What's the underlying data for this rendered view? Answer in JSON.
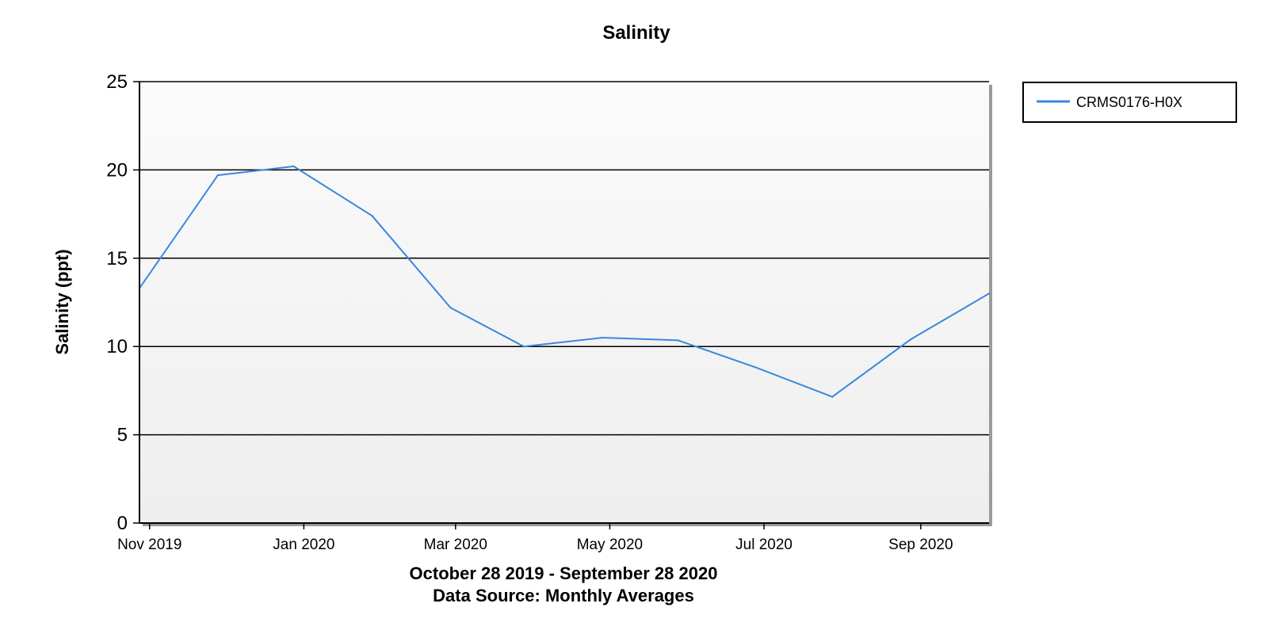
{
  "chart_data": {
    "type": "line",
    "title": "Salinity",
    "ylabel": "Salinity (ppt)",
    "xlabel_lines": [
      "October 28 2019 - September 28 2020",
      "Data Source: Monthly Averages"
    ],
    "ylim": [
      0,
      25
    ],
    "yticks": [
      0,
      5,
      10,
      15,
      20,
      25
    ],
    "xlim": [
      "2019-10-28",
      "2020-09-28"
    ],
    "xticks": [
      {
        "date": "2019-11-01",
        "label": "Nov 2019"
      },
      {
        "date": "2020-01-01",
        "label": "Jan 2020"
      },
      {
        "date": "2020-03-01",
        "label": "Mar 2020"
      },
      {
        "date": "2020-05-01",
        "label": "May 2020"
      },
      {
        "date": "2020-07-01",
        "label": "Jul 2020"
      },
      {
        "date": "2020-09-01",
        "label": "Sep 2020"
      }
    ],
    "grid": true,
    "legend_position": "top-right",
    "series": [
      {
        "name": "CRMS0176-H0X",
        "color": "#3a87e0",
        "points": [
          {
            "x": "2019-10-28",
            "y": 13.3
          },
          {
            "x": "2019-11-28",
            "y": 19.7
          },
          {
            "x": "2019-12-28",
            "y": 20.2
          },
          {
            "x": "2020-01-28",
            "y": 17.4
          },
          {
            "x": "2020-02-28",
            "y": 12.2
          },
          {
            "x": "2020-03-28",
            "y": 10.0
          },
          {
            "x": "2020-04-28",
            "y": 10.5
          },
          {
            "x": "2020-05-28",
            "y": 10.35
          },
          {
            "x": "2020-06-28",
            "y": 8.8
          },
          {
            "x": "2020-07-28",
            "y": 7.15
          },
          {
            "x": "2020-08-28",
            "y": 10.4
          },
          {
            "x": "2020-09-28",
            "y": 13.0
          }
        ]
      }
    ]
  }
}
